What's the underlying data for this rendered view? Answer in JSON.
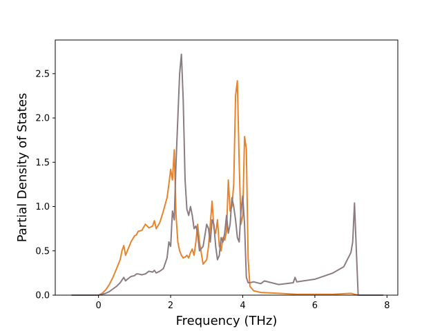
{
  "chart_data": {
    "type": "line",
    "title": "",
    "xlabel": "Frequency (THz)",
    "ylabel": "Partial Density of States",
    "xlim": [
      -1.2,
      8.3
    ],
    "ylim": [
      0.0,
      2.88
    ],
    "xticks": [
      0,
      2,
      4,
      6,
      8
    ],
    "yticks": [
      0.0,
      0.5,
      1.0,
      1.5,
      2.0,
      2.5
    ],
    "xtick_labels": [
      "0",
      "2",
      "4",
      "6",
      "8"
    ],
    "ytick_labels": [
      "0.0",
      "0.5",
      "1.0",
      "1.5",
      "2.0",
      "2.5"
    ],
    "grid": false,
    "legend": "none",
    "series": [
      {
        "color": "#e8832a",
        "x": [
          -0.75,
          0.0,
          0.1,
          0.2,
          0.3,
          0.4,
          0.5,
          0.6,
          0.65,
          0.7,
          0.75,
          0.8,
          0.9,
          1.0,
          1.05,
          1.1,
          1.2,
          1.3,
          1.4,
          1.5,
          1.55,
          1.6,
          1.7,
          1.8,
          1.9,
          1.95,
          2.0,
          2.05,
          2.1,
          2.15,
          2.2,
          2.25,
          2.3,
          2.35,
          2.4,
          2.45,
          2.5,
          2.55,
          2.6,
          2.65,
          2.7,
          2.75,
          2.8,
          2.9,
          3.0,
          3.05,
          3.1,
          3.15,
          3.2,
          3.25,
          3.3,
          3.35,
          3.4,
          3.45,
          3.5,
          3.55,
          3.6,
          3.65,
          3.7,
          3.75,
          3.8,
          3.85,
          3.9,
          3.95,
          4.0,
          4.05,
          4.1,
          4.15,
          4.2,
          4.3,
          4.5,
          5.0,
          5.5,
          6.0,
          6.5,
          7.0,
          7.1,
          7.15,
          7.2,
          7.9
        ],
        "y": [
          0.0,
          0.0,
          0.02,
          0.06,
          0.12,
          0.2,
          0.3,
          0.4,
          0.5,
          0.56,
          0.45,
          0.5,
          0.6,
          0.67,
          0.68,
          0.72,
          0.73,
          0.8,
          0.76,
          0.78,
          0.84,
          0.75,
          0.82,
          0.95,
          1.1,
          1.25,
          1.42,
          1.3,
          1.64,
          0.9,
          0.6,
          0.5,
          0.45,
          0.42,
          0.43,
          0.45,
          0.42,
          0.48,
          0.52,
          0.45,
          0.6,
          0.8,
          0.6,
          0.35,
          0.4,
          0.55,
          0.8,
          1.06,
          0.75,
          0.7,
          0.85,
          0.55,
          0.5,
          0.65,
          0.62,
          0.72,
          1.3,
          0.95,
          1.0,
          1.25,
          2.25,
          2.42,
          1.5,
          0.8,
          0.9,
          1.79,
          1.65,
          0.4,
          0.1,
          0.05,
          0.03,
          0.02,
          0.01,
          0.01,
          0.01,
          0.02,
          0.01,
          0.005,
          0.0,
          0.0
        ]
      },
      {
        "color": "#8b7b83",
        "x": [
          -0.75,
          0.0,
          0.1,
          0.2,
          0.3,
          0.4,
          0.5,
          0.6,
          0.65,
          0.7,
          0.75,
          0.8,
          0.9,
          1.0,
          1.05,
          1.1,
          1.2,
          1.3,
          1.4,
          1.5,
          1.55,
          1.6,
          1.7,
          1.8,
          1.9,
          1.95,
          2.0,
          2.05,
          2.1,
          2.15,
          2.2,
          2.25,
          2.3,
          2.35,
          2.4,
          2.45,
          2.5,
          2.55,
          2.6,
          2.65,
          2.7,
          2.75,
          2.8,
          2.9,
          3.0,
          3.05,
          3.1,
          3.15,
          3.2,
          3.25,
          3.3,
          3.35,
          3.4,
          3.45,
          3.5,
          3.55,
          3.6,
          3.65,
          3.7,
          3.75,
          3.8,
          3.85,
          3.9,
          3.95,
          4.0,
          4.05,
          4.1,
          4.15,
          4.2,
          4.3,
          4.5,
          4.6,
          5.0,
          5.4,
          5.45,
          5.5,
          6.0,
          6.5,
          6.8,
          7.0,
          7.05,
          7.1,
          7.15,
          7.2,
          7.9
        ],
        "y": [
          0.0,
          0.0,
          0.01,
          0.02,
          0.04,
          0.07,
          0.1,
          0.14,
          0.17,
          0.2,
          0.16,
          0.18,
          0.21,
          0.22,
          0.24,
          0.24,
          0.23,
          0.24,
          0.27,
          0.26,
          0.28,
          0.25,
          0.27,
          0.3,
          0.42,
          0.6,
          0.55,
          0.95,
          0.85,
          1.5,
          2.0,
          2.5,
          2.72,
          2.2,
          1.3,
          0.97,
          0.9,
          1.0,
          0.9,
          0.75,
          0.78,
          0.7,
          0.5,
          0.55,
          0.8,
          0.75,
          0.6,
          0.85,
          0.8,
          0.55,
          0.4,
          0.45,
          0.65,
          0.6,
          0.7,
          0.9,
          0.7,
          0.8,
          1.1,
          1.0,
          0.85,
          0.65,
          0.6,
          0.95,
          1.12,
          0.8,
          0.2,
          0.14,
          0.14,
          0.15,
          0.13,
          0.16,
          0.12,
          0.14,
          0.2,
          0.15,
          0.18,
          0.25,
          0.32,
          0.48,
          0.6,
          1.04,
          0.5,
          0.0,
          0.0
        ]
      }
    ]
  }
}
